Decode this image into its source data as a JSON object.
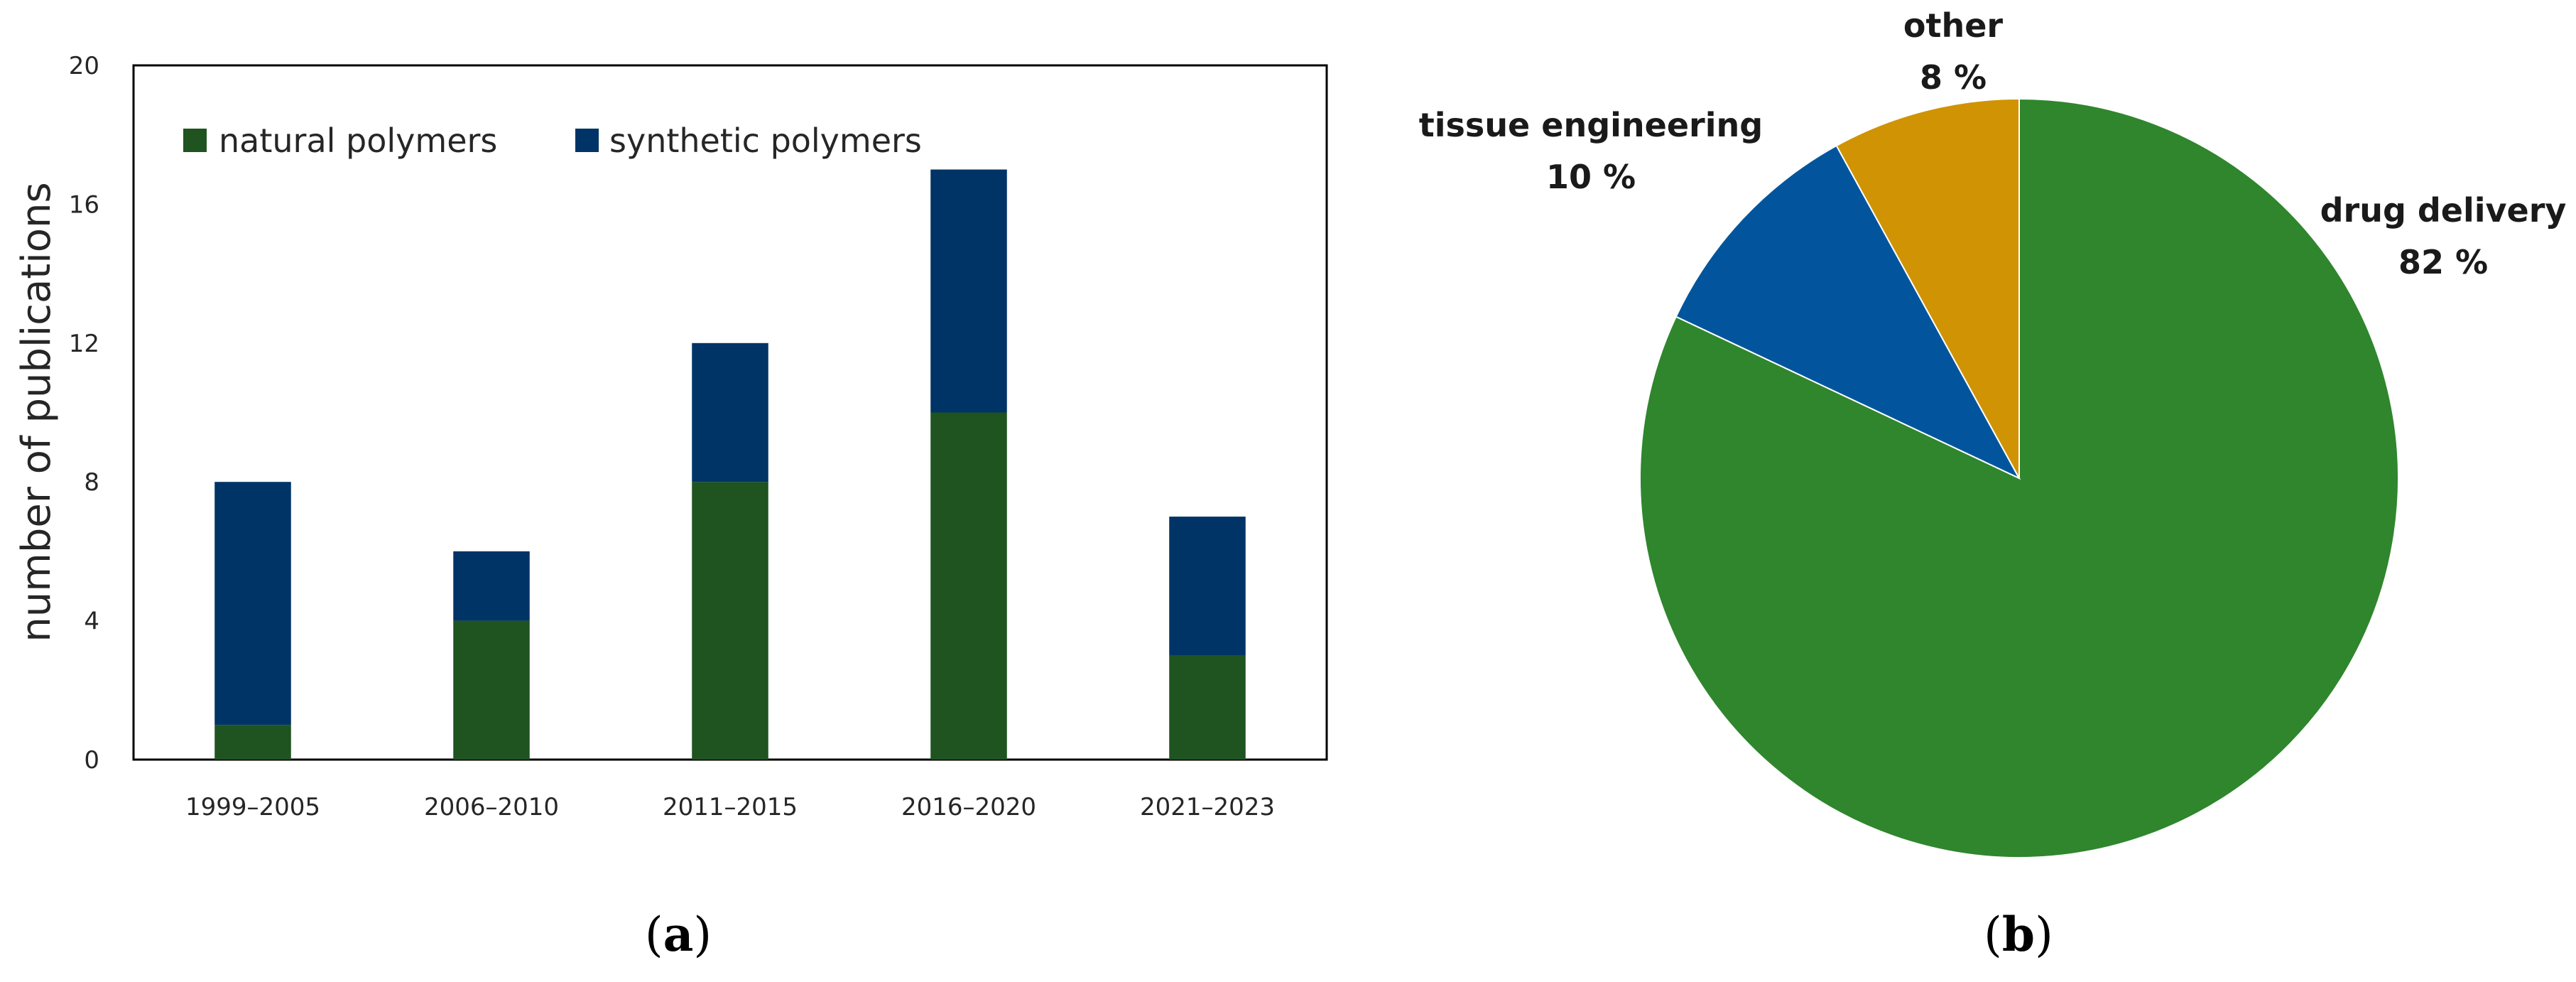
{
  "chart_data": [
    {
      "panel": "(a)",
      "type": "bar",
      "stacked": true,
      "categories": [
        "1999–2005",
        "2006–2010",
        "2011–2015",
        "2016–2020",
        "2021–2023"
      ],
      "series": [
        {
          "name": "natural polymers",
          "color": "#1f5320",
          "values": [
            1,
            4,
            8,
            10,
            3
          ]
        },
        {
          "name": "synthetic polymers",
          "color": "#003466",
          "values": [
            7,
            2,
            4,
            7,
            4
          ]
        }
      ],
      "title": "",
      "xlabel": "",
      "ylabel": "number of publications",
      "ylim": [
        0,
        20
      ],
      "yticks": [
        "0",
        "4",
        "8",
        "12",
        "16",
        "20"
      ],
      "grid": false,
      "legend_position": "top-left"
    },
    {
      "panel": "(b)",
      "type": "pie",
      "slices": [
        {
          "label": "drug delivery",
          "value": 82,
          "value_label": "82 %",
          "color": "#2f862d"
        },
        {
          "label": "tissue engineering",
          "value": 10,
          "value_label": "10 %",
          "color": "#02559d"
        },
        {
          "label": "other",
          "value": 8,
          "value_label": "8 %",
          "color": "#d09304"
        }
      ],
      "start": "top",
      "direction": "clockwise"
    }
  ],
  "panel_labels": {
    "a": {
      "open": "(",
      "letter": "a",
      "close": ")"
    },
    "b": {
      "open": "(",
      "letter": "b",
      "close": ")"
    }
  }
}
